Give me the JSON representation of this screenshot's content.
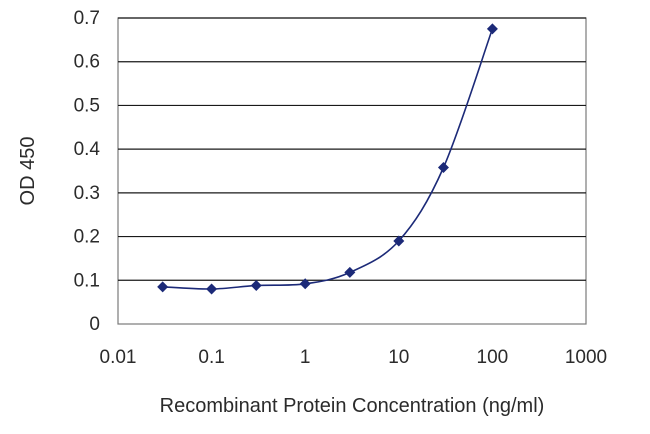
{
  "chart_data": {
    "type": "line",
    "x_scale": "log",
    "xlabel": "Recombinant Protein Concentration (ng/ml)",
    "ylabel": "OD 450",
    "xlim": [
      0.01,
      1000
    ],
    "ylim": [
      0,
      0.7
    ],
    "x_ticks": [
      "0.01",
      "0.1",
      "1",
      "10",
      "100",
      "1000"
    ],
    "y_ticks": [
      "0",
      "0.1",
      "0.2",
      "0.3",
      "0.4",
      "0.5",
      "0.6",
      "0.7"
    ],
    "grid": "horizontal",
    "series": [
      {
        "color": "#1c2a78",
        "marker": "diamond",
        "points": [
          {
            "x": 0.03,
            "y": 0.085
          },
          {
            "x": 0.1,
            "y": 0.08
          },
          {
            "x": 0.3,
            "y": 0.088
          },
          {
            "x": 1,
            "y": 0.092
          },
          {
            "x": 3,
            "y": 0.118
          },
          {
            "x": 10,
            "y": 0.19
          },
          {
            "x": 30,
            "y": 0.358
          },
          {
            "x": 100,
            "y": 0.675
          }
        ]
      }
    ]
  }
}
